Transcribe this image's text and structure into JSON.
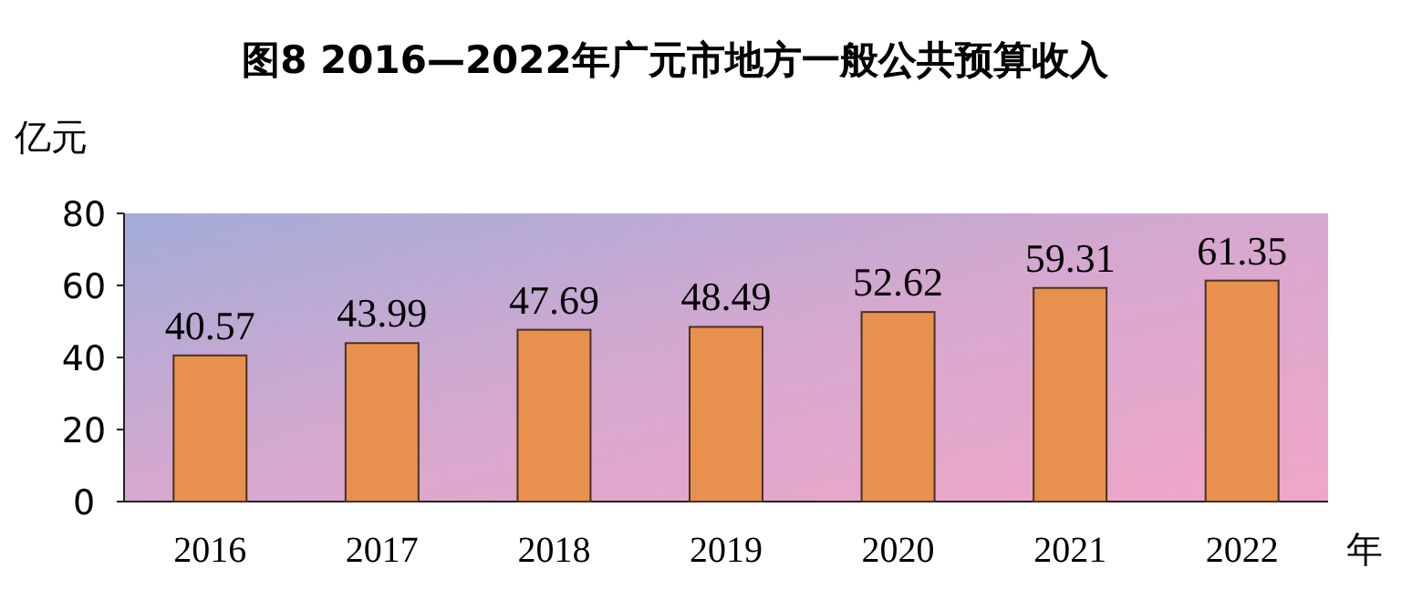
{
  "chart_data": {
    "type": "bar",
    "title": "图8 2016—2022年广元市地方一般公共预算收入",
    "ylabel": "亿元",
    "xlabel": "年",
    "categories": [
      "2016",
      "2017",
      "2018",
      "2019",
      "2020",
      "2021",
      "2022"
    ],
    "values": [
      40.57,
      43.99,
      47.69,
      48.49,
      52.62,
      59.31,
      61.35
    ],
    "color": "#e8914e",
    "ylim": [
      0,
      80
    ],
    "yticks": [
      0,
      20,
      40,
      60,
      80
    ],
    "data_labels": true,
    "grid": false
  }
}
